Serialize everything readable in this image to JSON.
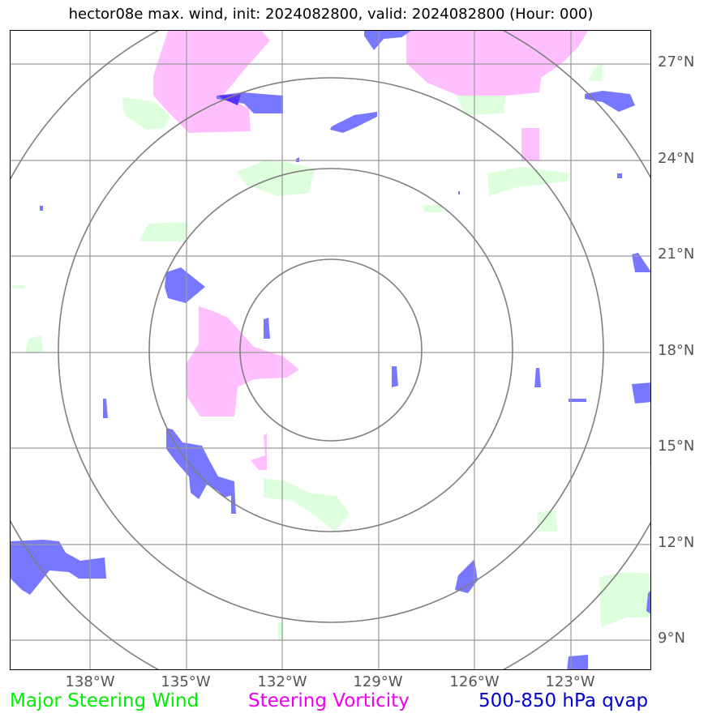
{
  "title": "hector08e max. wind, init: 2024082800, valid: 2024082800 (Hour: 000)",
  "map": {
    "lat_labels": [
      "27°N",
      "24°N",
      "21°N",
      "18°N",
      "15°N",
      "12°N",
      "9°N"
    ],
    "lon_labels": [
      "138°W",
      "135°W",
      "132°W",
      "129°W",
      "126°W",
      "123°W"
    ],
    "range_rings": 4,
    "colors": {
      "wind": "#ddffdd",
      "vorticity": "#ffbfff",
      "qvap": "#7777ff",
      "grid": "#999999",
      "rings": "#7f7f7f"
    }
  },
  "legend": {
    "items": [
      {
        "label": "Major Steering Wind",
        "color": "#00ee00"
      },
      {
        "label": "Steering Vorticity",
        "color": "#ee00ee"
      },
      {
        "label": "500-850 hPa qvap",
        "color": "#0000cc"
      }
    ]
  }
}
